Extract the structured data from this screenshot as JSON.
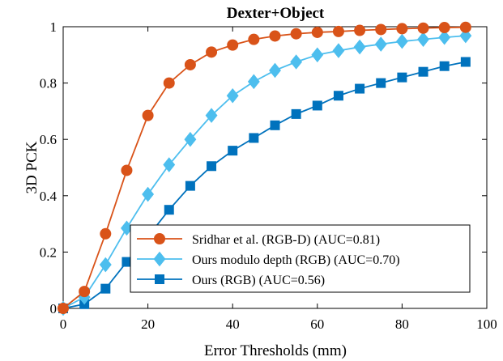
{
  "chart_data": {
    "type": "line",
    "title": "Dexter+Object",
    "xlabel": "Error Thresholds (mm)",
    "ylabel": "3D PCK",
    "xlim": [
      0,
      100
    ],
    "ylim": [
      0,
      1
    ],
    "xticks": [
      0,
      20,
      40,
      60,
      80,
      100
    ],
    "yticks": [
      0,
      0.2,
      0.4,
      0.6,
      0.8,
      1
    ],
    "xtick_labels": [
      "0",
      "20",
      "40",
      "60",
      "80",
      "100"
    ],
    "ytick_labels": [
      "0",
      "0.2",
      "0.4",
      "0.6",
      "0.8",
      "1"
    ],
    "grid": false,
    "legend_position": "bottom-right",
    "x": [
      0,
      5,
      10,
      15,
      20,
      25,
      30,
      35,
      40,
      45,
      50,
      55,
      60,
      65,
      70,
      75,
      80,
      85,
      90,
      95
    ],
    "series": [
      {
        "name": "Sridhar et al. (RGB-D) (AUC=0.81)",
        "color": "#d95319",
        "marker": "circle",
        "values": [
          0.0,
          0.06,
          0.265,
          0.49,
          0.685,
          0.8,
          0.865,
          0.91,
          0.935,
          0.955,
          0.967,
          0.975,
          0.98,
          0.983,
          0.987,
          0.99,
          0.993,
          0.995,
          0.997,
          0.998
        ]
      },
      {
        "name": "Ours modulo depth (RGB) (AUC=0.70)",
        "color": "#4dbeee",
        "marker": "diamond",
        "values": [
          0.0,
          0.04,
          0.155,
          0.285,
          0.405,
          0.51,
          0.6,
          0.685,
          0.755,
          0.805,
          0.845,
          0.875,
          0.9,
          0.915,
          0.928,
          0.938,
          0.948,
          0.955,
          0.962,
          0.968
        ]
      },
      {
        "name": "Ours (RGB) (AUC=0.56)",
        "color": "#0072bd",
        "marker": "square",
        "values": [
          0.0,
          0.015,
          0.07,
          0.165,
          0.255,
          0.35,
          0.435,
          0.505,
          0.56,
          0.605,
          0.65,
          0.69,
          0.72,
          0.755,
          0.78,
          0.8,
          0.82,
          0.84,
          0.86,
          0.875
        ]
      }
    ]
  }
}
